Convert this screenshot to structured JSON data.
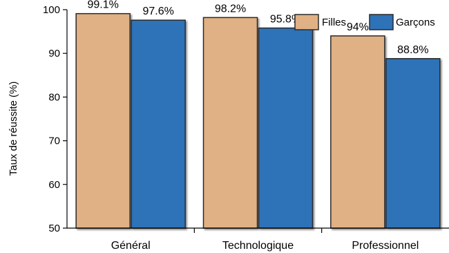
{
  "chart_data": {
    "type": "bar",
    "categories": [
      "Général",
      "Technologique",
      "Professionnel"
    ],
    "series": [
      {
        "name": "Filles",
        "values": [
          99.1,
          98.2,
          94
        ],
        "labels": [
          "99.1%",
          "98.2%",
          "94%"
        ],
        "color": "#e0b185"
      },
      {
        "name": "Garçons",
        "values": [
          97.6,
          95.8,
          88.8
        ],
        "labels": [
          "97.6%",
          "95.8%",
          "88.8%"
        ],
        "color": "#2e72b8"
      }
    ],
    "xlabel": "",
    "ylabel": "Taux de réussite (%)",
    "ylim": [
      50,
      100
    ],
    "yticks": [
      "50",
      "60",
      "70",
      "80",
      "90",
      "100"
    ],
    "legend_position": "top-right",
    "grid": false
  }
}
